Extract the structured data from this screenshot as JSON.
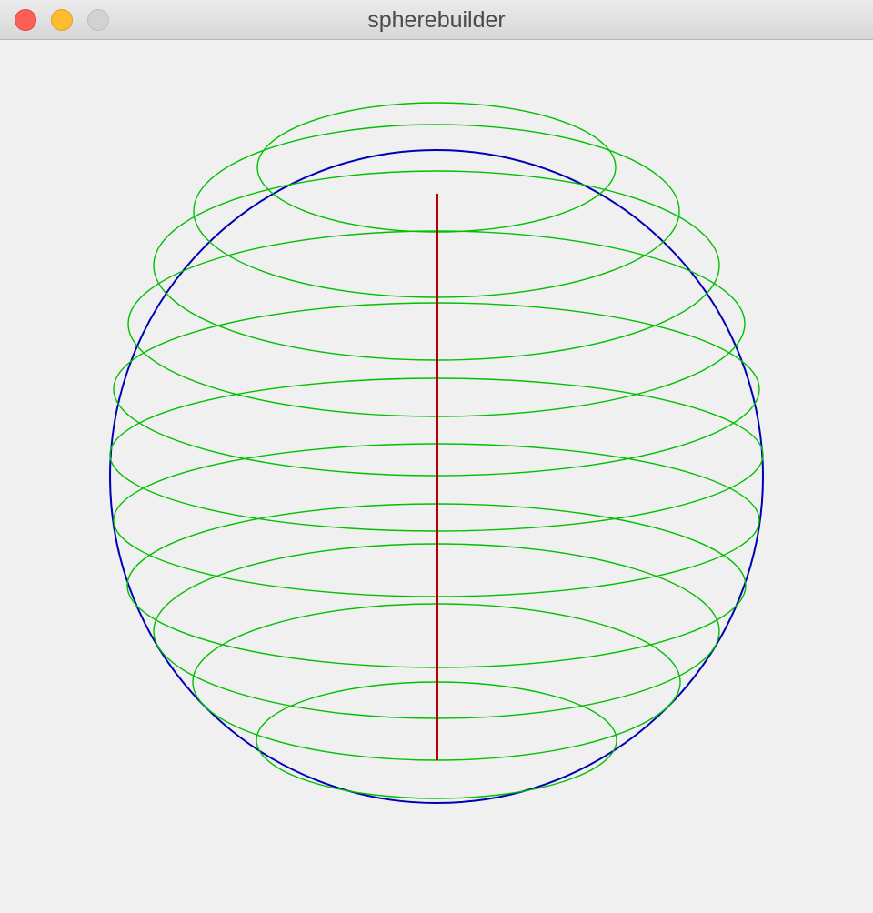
{
  "window": {
    "title": "spherebuilder",
    "buttons": {
      "close": "close-icon",
      "minimize": "minimize-icon",
      "zoom": "zoom-icon"
    }
  },
  "sphere": {
    "outline_color": "#0000b4",
    "grid_color": "#00c000",
    "axis_color": "#b40000"
  }
}
